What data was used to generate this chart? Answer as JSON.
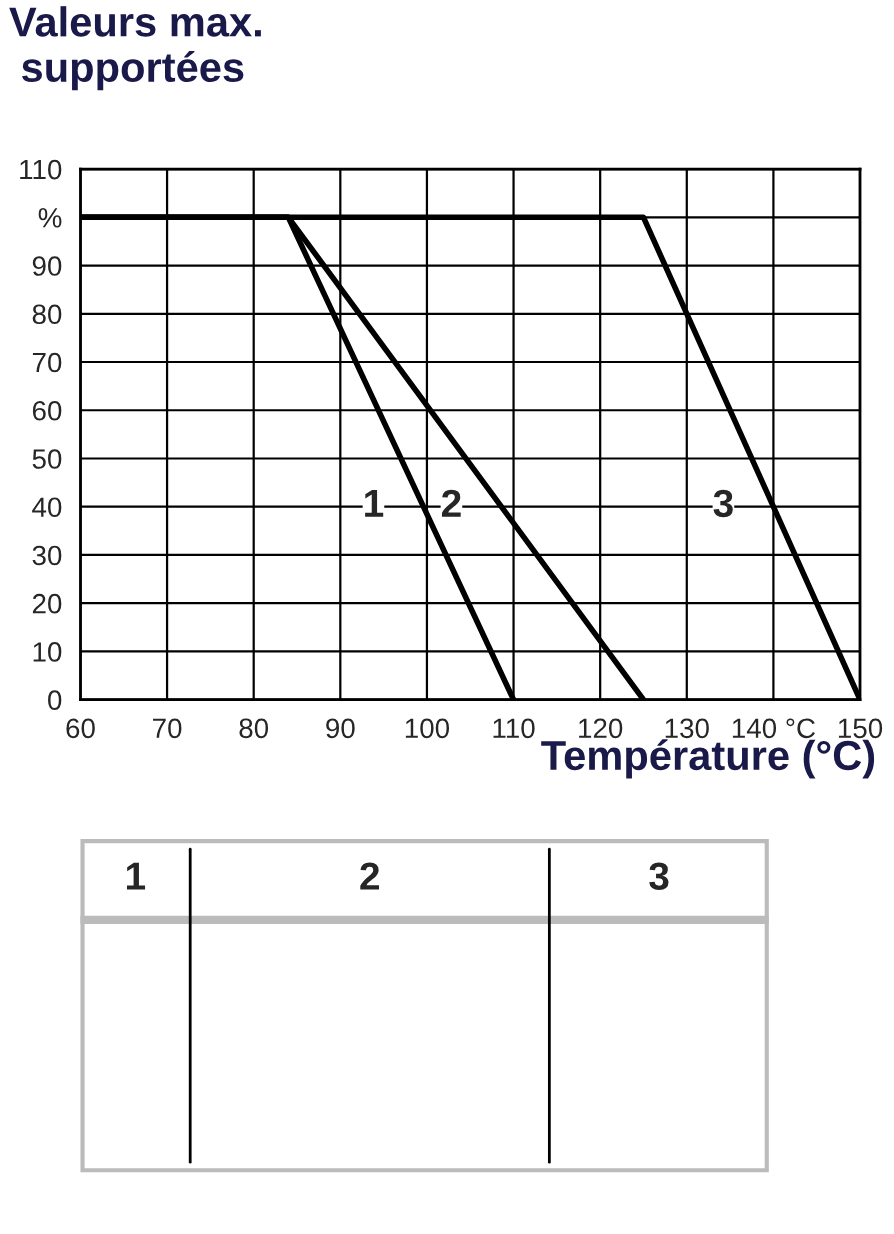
{
  "chart_data": {
    "type": "line",
    "title": "Valeurs max.\n supportées",
    "xlabel": "Température (°C)",
    "series": [
      {
        "name": "1",
        "color": "#000000",
        "x": [
          60,
          84,
          110
        ],
        "values": [
          100,
          100,
          0
        ]
      },
      {
        "name": "2",
        "color": "#000000",
        "x": [
          60,
          84,
          125
        ],
        "values": [
          100,
          100,
          0
        ]
      },
      {
        "name": "3",
        "color": "#000000",
        "x": [
          60,
          125,
          150
        ],
        "values": [
          100,
          100,
          0
        ]
      }
    ],
    "xlim": [
      60,
      150
    ],
    "xticks": [
      60,
      70,
      80,
      90,
      100,
      110,
      120,
      130,
      {
        "value": 140,
        "label": "140 °C"
      },
      150
    ],
    "ylim": [
      0,
      110
    ],
    "yticks": [
      0,
      10,
      20,
      30,
      40,
      50,
      60,
      70,
      80,
      90,
      {
        "value": 100,
        "label": "%"
      },
      110
    ],
    "grid": true,
    "marker": "none",
    "line_style": "solid",
    "legend": false,
    "annotations": [
      "1",
      "2",
      "3"
    ]
  }
}
